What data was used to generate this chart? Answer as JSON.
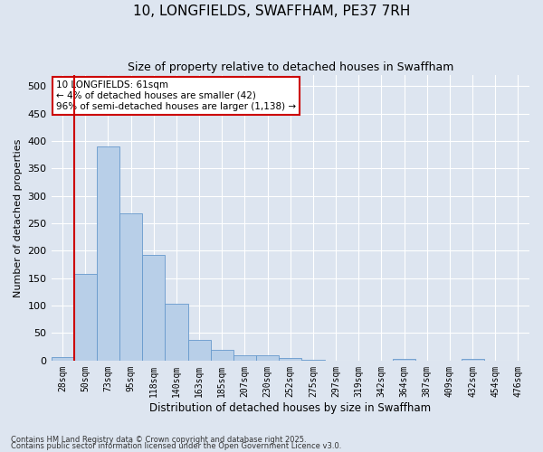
{
  "title": "10, LONGFIELDS, SWAFFHAM, PE37 7RH",
  "subtitle": "Size of property relative to detached houses in Swaffham",
  "xlabel": "Distribution of detached houses by size in Swaffham",
  "ylabel": "Number of detached properties",
  "bar_labels": [
    "28sqm",
    "50sqm",
    "73sqm",
    "95sqm",
    "118sqm",
    "140sqm",
    "163sqm",
    "185sqm",
    "207sqm",
    "230sqm",
    "252sqm",
    "275sqm",
    "297sqm",
    "319sqm",
    "342sqm",
    "364sqm",
    "387sqm",
    "409sqm",
    "432sqm",
    "454sqm",
    "476sqm"
  ],
  "bar_values": [
    6,
    157,
    390,
    268,
    193,
    103,
    37,
    20,
    10,
    9,
    4,
    1,
    0,
    0,
    0,
    3,
    0,
    0,
    3,
    0,
    0
  ],
  "bar_color": "#b8cfe8",
  "bar_edge_color": "#6699cc",
  "background_color": "#dde5f0",
  "grid_color": "#ffffff",
  "annotation_text": "10 LONGFIELDS: 61sqm\n← 4% of detached houses are smaller (42)\n96% of semi-detached houses are larger (1,138) →",
  "annotation_box_color": "#ffffff",
  "annotation_box_edge_color": "#cc0000",
  "red_line_color": "#cc0000",
  "footnote1": "Contains HM Land Registry data © Crown copyright and database right 2025.",
  "footnote2": "Contains public sector information licensed under the Open Government Licence v3.0.",
  "ylim": [
    0,
    520
  ],
  "yticks": [
    0,
    50,
    100,
    150,
    200,
    250,
    300,
    350,
    400,
    450,
    500
  ],
  "red_line_bar_index": 1
}
